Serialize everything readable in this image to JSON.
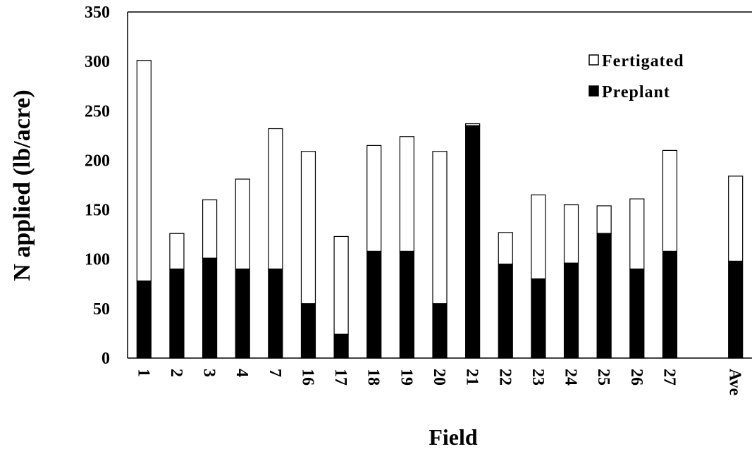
{
  "chart_data": {
    "type": "bar",
    "stacked": true,
    "xlabel": "Field",
    "ylabel": "N applied (lb/acre)",
    "ylim": [
      0,
      350
    ],
    "yticks": [
      "0",
      "50",
      "100",
      "150",
      "200",
      "250",
      "300",
      "350"
    ],
    "categories": [
      "1",
      "2",
      "3",
      "4",
      "7",
      "16",
      "17",
      "18",
      "19",
      "20",
      "21",
      "22",
      "23",
      "24",
      "25",
      "26",
      "27",
      "",
      "Ave"
    ],
    "series": [
      {
        "name": "Preplant",
        "color": "#000000",
        "values": [
          78,
          90,
          101,
          90,
          90,
          55,
          24,
          108,
          108,
          55,
          235,
          95,
          80,
          96,
          126,
          90,
          108,
          null,
          98
        ]
      },
      {
        "name": "Fertigated",
        "color": "#ffffff",
        "values": [
          223,
          36,
          59,
          91,
          142,
          154,
          99,
          107,
          116,
          154,
          2,
          32,
          85,
          59,
          28,
          71,
          102,
          null,
          86
        ]
      }
    ],
    "legend": {
      "position": "top-right",
      "order": [
        "Fertigated",
        "Preplant"
      ]
    }
  }
}
